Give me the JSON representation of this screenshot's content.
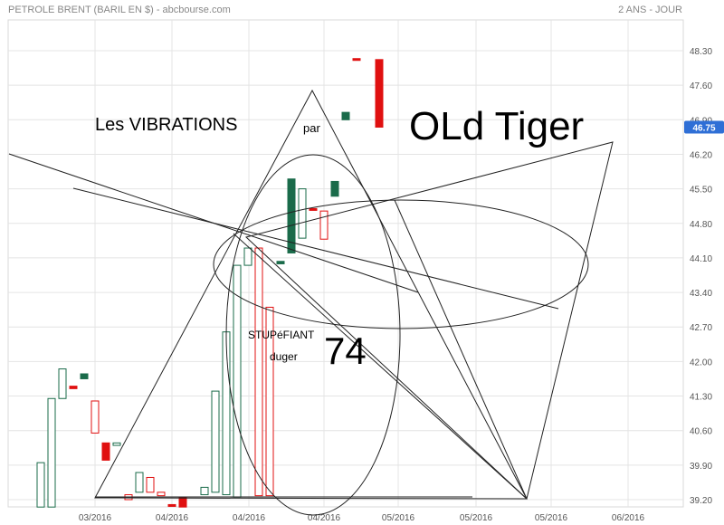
{
  "header": {
    "title": "PETROLE BRENT (BARIL EN $) - abcbourse.com",
    "period": "2 ANS - JOUR"
  },
  "last_price": {
    "label": "46.75",
    "value": 46.75,
    "color": "#2f6fd6"
  },
  "annotations": {
    "vibrations": "Les VIBRATIONS",
    "par": "par",
    "old_tiger": "OLd Tiger",
    "stupefiant": "STUPéFIANT",
    "duger": "duger",
    "number": "74"
  },
  "colors": {
    "up": "#1a6b4a",
    "down": "#e01010",
    "grid": "#e4e4e4",
    "drawing": "#222222"
  },
  "chart_data": {
    "type": "candlestick",
    "title": "PETROLE BRENT (BARIL EN $) - abcbourse.com",
    "xlabel": "",
    "ylabel": "",
    "ylim": [
      39.05,
      48.85
    ],
    "yticks": [
      "48.30",
      "47.60",
      "46.90",
      "46.20",
      "45.50",
      "44.80",
      "44.10",
      "43.40",
      "42.70",
      "42.00",
      "41.30",
      "40.60",
      "39.90",
      "39.20"
    ],
    "xticks": [
      "03/2016",
      "04/2016",
      "04/2016",
      "04/2016",
      "05/2016",
      "05/2016",
      "05/2016",
      "06/2016"
    ],
    "grid": true,
    "candles": [
      {
        "open": 39.05,
        "close": 39.95,
        "style": "hollow-up"
      },
      {
        "open": 39.05,
        "close": 41.25,
        "style": "hollow-up"
      },
      {
        "open": 41.25,
        "close": 41.85,
        "style": "hollow-up"
      },
      {
        "open": 41.5,
        "close": 41.45,
        "style": "filled-down"
      },
      {
        "open": 41.65,
        "close": 41.75,
        "style": "filled-up"
      },
      {
        "open": 40.55,
        "close": 41.2,
        "style": "hollow-down"
      },
      {
        "open": 40.35,
        "close": 40.0,
        "style": "filled-down"
      },
      {
        "open": 40.3,
        "close": 40.35,
        "style": "hollow-up"
      },
      {
        "open": 39.3,
        "close": 39.2,
        "style": "hollow-down"
      },
      {
        "open": 39.35,
        "close": 39.75,
        "style": "hollow-up"
      },
      {
        "open": 39.65,
        "close": 39.35,
        "style": "hollow-down"
      },
      {
        "open": 39.35,
        "close": 39.28,
        "style": "hollow-down"
      },
      {
        "open": 39.1,
        "close": 39.1,
        "style": "filled-down"
      },
      {
        "open": 39.25,
        "close": 39.05,
        "style": "filled-down"
      },
      {
        "open": 39.3,
        "close": 39.45,
        "style": "hollow-up"
      },
      {
        "open": 39.35,
        "close": 41.4,
        "style": "hollow-up"
      },
      {
        "open": 39.3,
        "close": 42.6,
        "style": "hollow-up"
      },
      {
        "open": 39.25,
        "close": 43.95,
        "style": "hollow-up"
      },
      {
        "open": 43.95,
        "close": 44.3,
        "style": "hollow-up"
      },
      {
        "open": 44.3,
        "close": 39.28,
        "style": "hollow-down"
      },
      {
        "open": 43.1,
        "close": 39.28,
        "style": "hollow-down"
      },
      {
        "open": 44.03,
        "close": 43.98,
        "style": "filled-up"
      },
      {
        "open": 44.2,
        "close": 45.7,
        "style": "filled-up"
      },
      {
        "open": 44.5,
        "close": 45.5,
        "style": "hollow-up"
      },
      {
        "open": 45.1,
        "close": 45.08,
        "style": "filled-down"
      },
      {
        "open": 45.05,
        "close": 44.48,
        "style": "hollow-down"
      },
      {
        "open": 45.35,
        "close": 45.65,
        "style": "filled-up"
      },
      {
        "open": 46.9,
        "close": 47.05,
        "style": "filled-up"
      },
      {
        "open": 48.14,
        "close": 48.13,
        "style": "filled-down"
      },
      {
        "open": 48.12,
        "close": 46.75,
        "style": "filled-down"
      }
    ]
  }
}
